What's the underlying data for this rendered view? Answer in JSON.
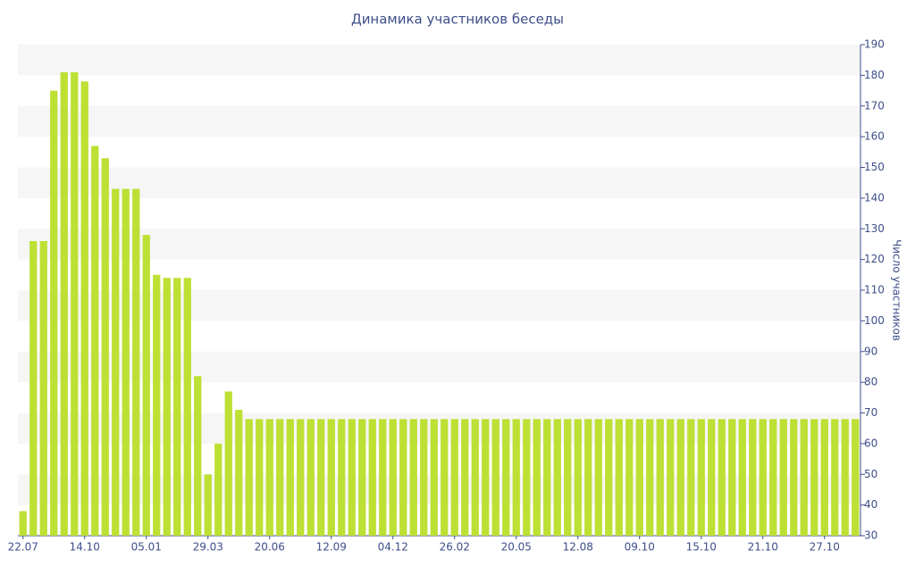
{
  "chart_data": {
    "type": "bar",
    "title": "Динамика участников беседы",
    "y_label": "Число участников",
    "categories": [
      "22.07",
      null,
      null,
      null,
      null,
      null,
      "14.10",
      null,
      null,
      null,
      null,
      null,
      "05.01",
      null,
      null,
      null,
      null,
      null,
      "29.03",
      null,
      null,
      null,
      null,
      null,
      "20.06",
      null,
      null,
      null,
      null,
      null,
      "12.09",
      null,
      null,
      null,
      null,
      null,
      "04.12",
      null,
      null,
      null,
      null,
      null,
      "26.02",
      null,
      null,
      null,
      null,
      null,
      "20.05",
      null,
      null,
      null,
      null,
      null,
      "12.08",
      null,
      null,
      null,
      null,
      null,
      "09.10",
      null,
      null,
      null,
      null,
      null,
      "15.10",
      null,
      null,
      null,
      null,
      null,
      "21.10",
      null,
      null,
      null,
      null,
      null,
      "27.10",
      null,
      null,
      null
    ],
    "values": [
      38,
      126,
      126,
      175,
      181,
      181,
      178,
      157,
      153,
      143,
      143,
      143,
      128,
      115,
      114,
      114,
      114,
      82,
      50,
      60,
      77,
      71,
      68,
      68,
      68,
      68,
      68,
      68,
      68,
      68,
      68,
      68,
      68,
      68,
      68,
      68,
      68,
      68,
      68,
      68,
      68,
      68,
      68,
      68,
      68,
      68,
      68,
      68,
      68,
      68,
      68,
      68,
      68,
      68,
      68,
      68,
      68,
      68,
      68,
      68,
      68,
      68,
      68,
      68,
      68,
      68,
      68,
      68,
      68,
      68,
      68,
      68,
      68,
      68,
      68,
      68,
      68,
      68,
      68,
      68,
      68,
      68
    ],
    "color": "#bde034",
    "ylim": [
      30,
      190
    ],
    "yticks": [
      30,
      40,
      50,
      60,
      70,
      80,
      90,
      100,
      110,
      120,
      130,
      140,
      150,
      160,
      170,
      180,
      190
    ],
    "y_axis_side": "right",
    "stripes": true
  }
}
